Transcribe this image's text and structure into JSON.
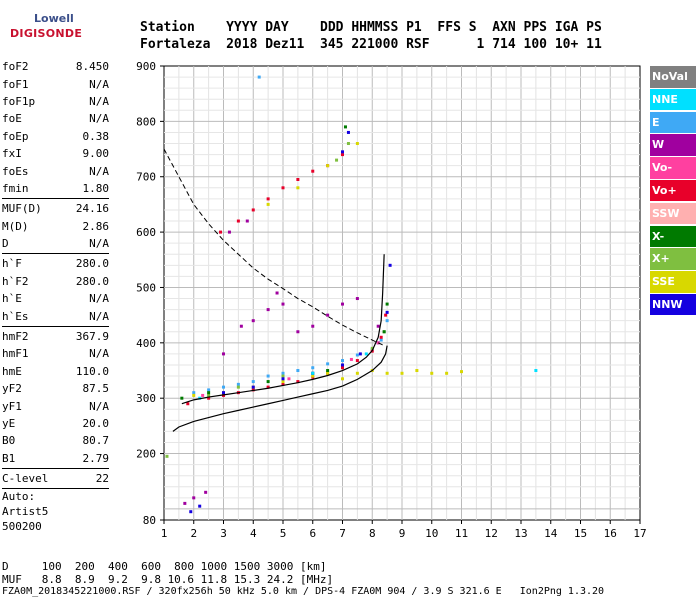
{
  "logo": {
    "top": "Lowell",
    "bottom": "DIGISONDE"
  },
  "header": {
    "line1": "Station    YYYY DAY    DDD HHMMSS P1  FFS S  AXN PPS IGA PS",
    "line2": "Fortaleza  2018 Dez11  345 221000 RSF      1 714 100 10+ 11"
  },
  "params": [
    {
      "name": "foF2",
      "value": "8.450"
    },
    {
      "name": "foF1",
      "value": "N/A"
    },
    {
      "name": "foF1p",
      "value": "N/A"
    },
    {
      "name": "foE",
      "value": "N/A"
    },
    {
      "name": "foEp",
      "value": "0.38"
    },
    {
      "name": "fxI",
      "value": "9.00"
    },
    {
      "name": "foEs",
      "value": "N/A"
    },
    {
      "name": "fmin",
      "value": "1.80"
    },
    {
      "sep": true
    },
    {
      "name": "MUF(D)",
      "value": "24.16"
    },
    {
      "name": "M(D)",
      "value": "2.86"
    },
    {
      "name": "D",
      "value": "N/A"
    },
    {
      "sep": true
    },
    {
      "name": "h`F",
      "value": "280.0"
    },
    {
      "name": "h`F2",
      "value": "280.0"
    },
    {
      "name": "h`E",
      "value": "N/A"
    },
    {
      "name": "h`Es",
      "value": "N/A"
    },
    {
      "sep": true
    },
    {
      "name": "hmF2",
      "value": "367.9"
    },
    {
      "name": "hmF1",
      "value": "N/A"
    },
    {
      "name": "hmE",
      "value": "110.0"
    },
    {
      "name": "yF2",
      "value": "87.5"
    },
    {
      "name": "yF1",
      "value": "N/A"
    },
    {
      "name": "yE",
      "value": "20.0"
    },
    {
      "name": "B0",
      "value": "80.7"
    },
    {
      "name": "B1",
      "value": "2.79"
    },
    {
      "sep": true
    },
    {
      "name": "C-level",
      "value": "22"
    },
    {
      "sep": true
    }
  ],
  "auto": {
    "line1": "Auto:",
    "line2": "Artist5",
    "line3": "500200"
  },
  "bottom": {
    "d_line": "D     100  200  400  600  800 1000 1500 3000 [km]",
    "muf_line": "MUF   8.8  8.9  9.2  9.8 10.6 11.8 15.3 24.2 [MHz]",
    "file_line": "FZA0M_2018345221000.RSF / 320fx256h 50 kHz 5.0 km / DPS-4 FZA0M 904 / 3.9 S 321.6 E   Ion2Png 1.3.20"
  },
  "legend": [
    {
      "label": "NoVal",
      "color": "#808080"
    },
    {
      "label": "NNE",
      "color": "#00e0ff"
    },
    {
      "label": "E",
      "color": "#3fa9f5"
    },
    {
      "label": "W",
      "color": "#a0009f"
    },
    {
      "label": "Vo-",
      "color": "#ff40a0"
    },
    {
      "label": "Vo+",
      "color": "#e8002a"
    },
    {
      "label": "SSW",
      "color": "#ffb0b0"
    },
    {
      "label": "X-",
      "color": "#007a00"
    },
    {
      "label": "X+",
      "color": "#7fbf40"
    },
    {
      "label": "SSE",
      "color": "#d8d800"
    },
    {
      "label": "NNW",
      "color": "#1400e0"
    }
  ],
  "chart_data": {
    "type": "scatter",
    "xlim": [
      1,
      17
    ],
    "ylim": [
      80,
      900
    ],
    "x_ticks": [
      1,
      2,
      3,
      4,
      5,
      6,
      7,
      8,
      9,
      10,
      11,
      12,
      13,
      14,
      15,
      16,
      17
    ],
    "y_ticks": [
      80,
      200,
      300,
      400,
      500,
      600,
      700,
      800,
      900
    ],
    "grid": true,
    "series": [
      {
        "name": "E",
        "color": "#3fa9f5",
        "points": [
          [
            2.0,
            310
          ],
          [
            2.5,
            315
          ],
          [
            3.0,
            320
          ],
          [
            3.5,
            325
          ],
          [
            4.0,
            330
          ],
          [
            4.5,
            340
          ],
          [
            5.0,
            345
          ],
          [
            5.5,
            350
          ],
          [
            6.0,
            355
          ],
          [
            6.5,
            362
          ],
          [
            7.0,
            368
          ],
          [
            7.5,
            378
          ],
          [
            8.0,
            388
          ],
          [
            8.3,
            405
          ],
          [
            8.5,
            440
          ],
          [
            4.2,
            880
          ]
        ]
      },
      {
        "name": "Vo+",
        "color": "#e8002a",
        "points": [
          [
            1.8,
            290
          ],
          [
            2.5,
            300
          ],
          [
            3.0,
            305
          ],
          [
            3.5,
            310
          ],
          [
            4.0,
            315
          ],
          [
            4.5,
            320
          ],
          [
            5.0,
            325
          ],
          [
            5.5,
            330
          ],
          [
            6.0,
            338
          ],
          [
            6.5,
            345
          ],
          [
            7.0,
            355
          ],
          [
            7.5,
            368
          ],
          [
            8.0,
            385
          ],
          [
            8.3,
            410
          ],
          [
            8.45,
            450
          ],
          [
            2.9,
            600
          ],
          [
            3.5,
            620
          ],
          [
            4.0,
            640
          ],
          [
            4.5,
            660
          ],
          [
            5.0,
            680
          ],
          [
            5.5,
            695
          ],
          [
            6.0,
            710
          ],
          [
            6.5,
            720
          ],
          [
            7.0,
            740
          ]
        ]
      },
      {
        "name": "W",
        "color": "#a0009f",
        "points": [
          [
            1.7,
            110
          ],
          [
            2.0,
            120
          ],
          [
            2.4,
            130
          ],
          [
            3.6,
            430
          ],
          [
            3.0,
            380
          ],
          [
            4.0,
            440
          ],
          [
            4.5,
            460
          ],
          [
            5.0,
            470
          ],
          [
            4.8,
            490
          ],
          [
            5.5,
            420
          ],
          [
            6.0,
            430
          ],
          [
            6.5,
            450
          ],
          [
            7.0,
            470
          ],
          [
            7.5,
            480
          ],
          [
            3.2,
            600
          ],
          [
            3.8,
            620
          ],
          [
            8.2,
            430
          ]
        ]
      },
      {
        "name": "SSE",
        "color": "#d8d800",
        "points": [
          [
            2.0,
            305
          ],
          [
            3.0,
            310
          ],
          [
            4.0,
            320
          ],
          [
            5.0,
            330
          ],
          [
            6.0,
            340
          ],
          [
            6.5,
            345
          ],
          [
            7.0,
            335
          ],
          [
            7.5,
            345
          ],
          [
            8.0,
            350
          ],
          [
            8.5,
            345
          ],
          [
            9.0,
            345
          ],
          [
            9.5,
            350
          ],
          [
            10.0,
            345
          ],
          [
            10.5,
            345
          ],
          [
            11.0,
            348
          ],
          [
            4.5,
            650
          ],
          [
            5.5,
            680
          ],
          [
            6.5,
            720
          ],
          [
            7.5,
            760
          ]
        ]
      },
      {
        "name": "X+",
        "color": "#7fbf40",
        "points": [
          [
            1.1,
            195
          ],
          [
            2.5,
            305
          ],
          [
            3.5,
            320
          ],
          [
            5.0,
            340
          ],
          [
            6.0,
            345
          ],
          [
            7.0,
            360
          ],
          [
            8.0,
            390
          ],
          [
            8.4,
            420
          ],
          [
            6.8,
            730
          ],
          [
            7.2,
            760
          ]
        ]
      },
      {
        "name": "NNW",
        "color": "#1400e0",
        "points": [
          [
            1.9,
            95
          ],
          [
            2.2,
            105
          ],
          [
            3.0,
            310
          ],
          [
            4.0,
            320
          ],
          [
            5.0,
            335
          ],
          [
            6.0,
            345
          ],
          [
            7.0,
            360
          ],
          [
            7.6,
            380
          ],
          [
            8.2,
            400
          ],
          [
            8.5,
            455
          ],
          [
            8.6,
            540
          ],
          [
            7.2,
            780
          ],
          [
            7.0,
            745
          ]
        ]
      },
      {
        "name": "X-",
        "color": "#007a00",
        "points": [
          [
            1.6,
            300
          ],
          [
            2.5,
            310
          ],
          [
            4.5,
            330
          ],
          [
            6.5,
            350
          ],
          [
            8.4,
            420
          ],
          [
            8.5,
            470
          ],
          [
            7.1,
            790
          ]
        ]
      },
      {
        "name": "NNE",
        "color": "#00e0ff",
        "points": [
          [
            2.2,
            300
          ],
          [
            6.0,
            345
          ],
          [
            7.8,
            380
          ],
          [
            13.5,
            350
          ]
        ]
      },
      {
        "name": "Vo-",
        "color": "#ff40a0",
        "points": [
          [
            2.3,
            305
          ],
          [
            5.2,
            335
          ],
          [
            7.3,
            370
          ],
          [
            8.2,
            400
          ]
        ]
      }
    ],
    "profile_curve": [
      [
        1.3,
        240
      ],
      [
        1.5,
        248
      ],
      [
        2.0,
        258
      ],
      [
        2.5,
        265
      ],
      [
        3.0,
        272
      ],
      [
        3.5,
        278
      ],
      [
        4.0,
        284
      ],
      [
        4.5,
        290
      ],
      [
        5.0,
        296
      ],
      [
        5.5,
        302
      ],
      [
        6.0,
        308
      ],
      [
        6.5,
        314
      ],
      [
        7.0,
        322
      ],
      [
        7.5,
        334
      ],
      [
        8.0,
        350
      ],
      [
        8.3,
        365
      ],
      [
        8.45,
        380
      ],
      [
        8.5,
        395
      ]
    ],
    "trace_curve": [
      [
        1.6,
        290
      ],
      [
        2.0,
        297
      ],
      [
        2.5,
        302
      ],
      [
        3.0,
        306
      ],
      [
        3.5,
        310
      ],
      [
        4.0,
        314
      ],
      [
        4.5,
        318
      ],
      [
        5.0,
        323
      ],
      [
        5.5,
        328
      ],
      [
        6.0,
        334
      ],
      [
        6.5,
        341
      ],
      [
        7.0,
        350
      ],
      [
        7.5,
        362
      ],
      [
        7.8,
        374
      ],
      [
        8.0,
        386
      ],
      [
        8.2,
        410
      ],
      [
        8.3,
        440
      ],
      [
        8.35,
        490
      ],
      [
        8.4,
        560
      ]
    ],
    "muf_curve": [
      [
        1.0,
        750
      ],
      [
        1.5,
        700
      ],
      [
        2.0,
        650
      ],
      [
        2.5,
        615
      ],
      [
        3.0,
        585
      ],
      [
        3.5,
        560
      ],
      [
        4.0,
        535
      ],
      [
        4.5,
        515
      ],
      [
        5.0,
        498
      ],
      [
        5.5,
        480
      ],
      [
        6.0,
        465
      ],
      [
        6.5,
        448
      ],
      [
        7.0,
        432
      ],
      [
        7.5,
        418
      ],
      [
        8.0,
        405
      ],
      [
        8.4,
        395
      ]
    ]
  }
}
